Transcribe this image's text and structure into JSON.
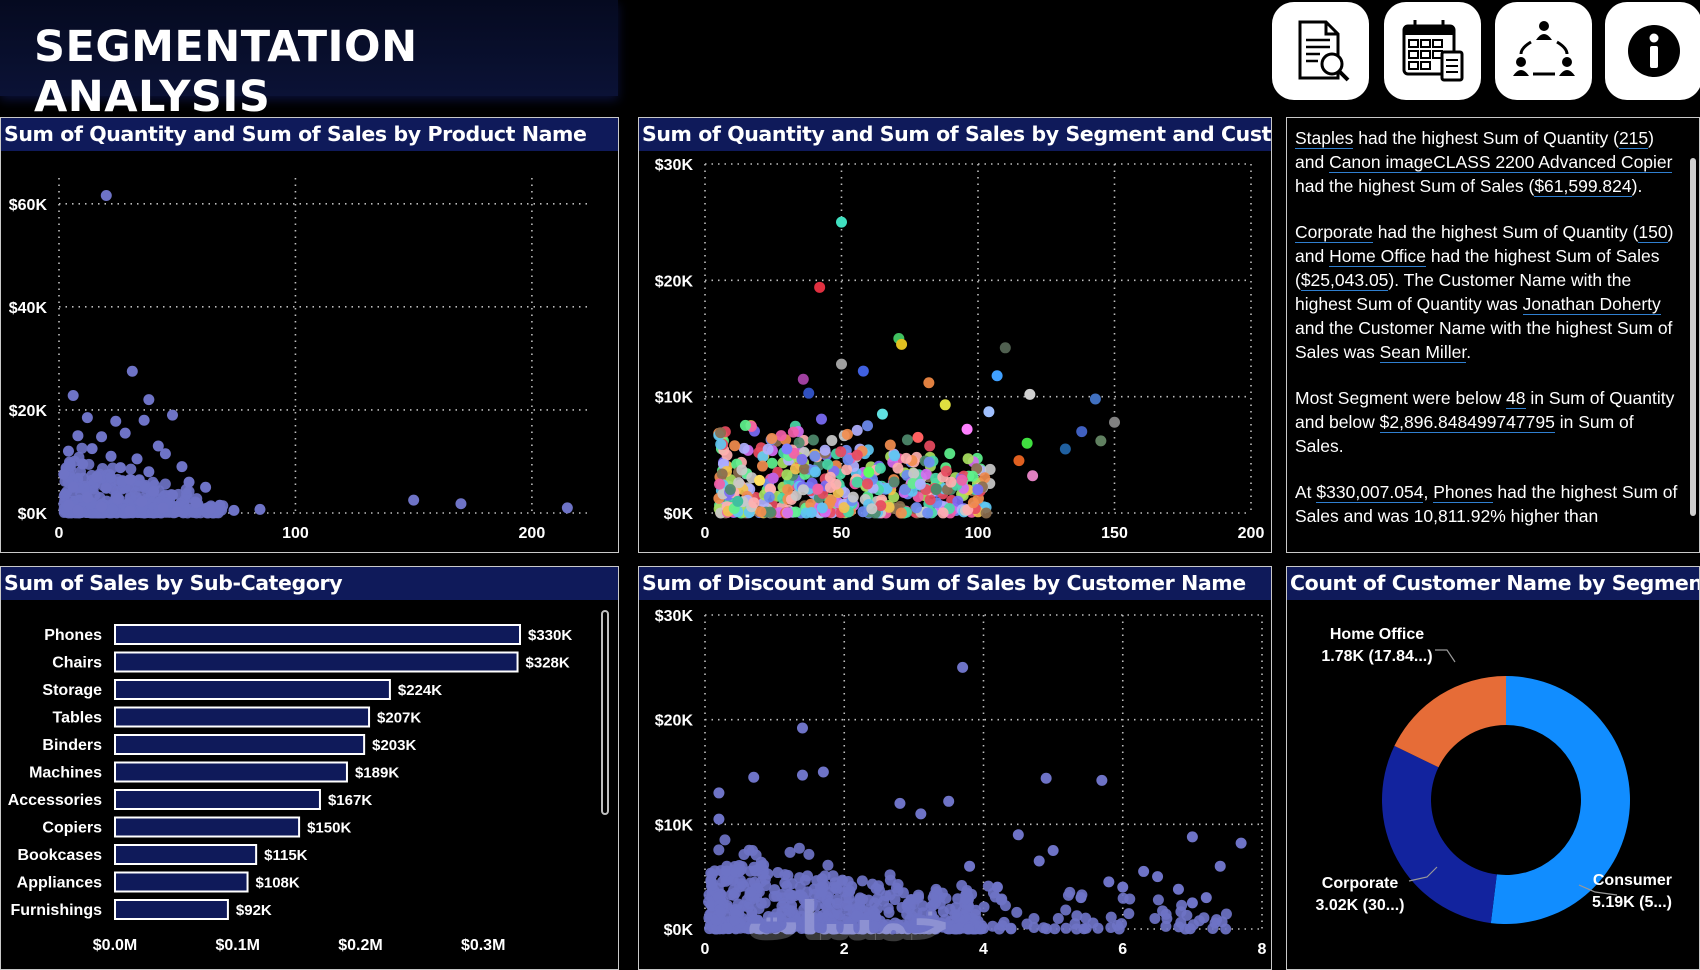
{
  "header": {
    "title": "SEGMENTATION ANALYSIS"
  },
  "nav_buttons": [
    {
      "name": "report-search",
      "icon": "document-search-icon"
    },
    {
      "name": "calendar",
      "icon": "calendar-icon"
    },
    {
      "name": "segments",
      "icon": "people-network-icon"
    },
    {
      "name": "info",
      "icon": "info-icon"
    }
  ],
  "panels": {
    "product_scatter": {
      "title": "Sum of Quantity and Sum of Sales by Product Name"
    },
    "segment_scatter": {
      "title": "Sum of Quantity and Sum of Sales by Segment and Customer"
    },
    "subcategory_bar": {
      "title": "Sum of Sales by Sub-Category"
    },
    "discount_scatter": {
      "title": "Sum of Discount and Sum of Sales by Customer Name"
    },
    "segment_donut": {
      "title": "Count of Customer Name by Segment"
    }
  },
  "narrative": {
    "p1": {
      "staples": "Staples",
      "t1": " had the highest Sum of Quantity (",
      "qty": "215",
      "t2": ") and ",
      "copier": "Canon imageCLASS 2200 Advanced Copier",
      "t3": " had the highest Sum of Sales (",
      "sales": "$61,599.824",
      "t4": ")."
    },
    "p2": {
      "corporate": "Corporate",
      "t1": " had the highest Sum of Quantity (",
      "qty": "150",
      "t2": ") and ",
      "home": "Home Office",
      "t3": " had the highest Sum of Sales (",
      "sales": "$25,043.05",
      "t4": "). The Customer Name with the highest Sum of Quantity was ",
      "jonathan": "Jonathan Doherty",
      "t5": " and the Customer Name with the highest Sum of Sales was ",
      "sean": "Sean Miller",
      "t6": "."
    },
    "p3": {
      "t1": "Most Segment were below ",
      "qty": "48",
      "t2": " in Sum of Quantity and below ",
      "sales": "$2,896.848499747795",
      "t3": " in Sum of Sales."
    },
    "p4": {
      "t1": "At ",
      "sales": "$330,007.054",
      "t2": ", ",
      "phones": "Phones",
      "t3": " had the highest Sum of Sales and was 10,811.92% higher than"
    }
  },
  "watermark": "خمسات",
  "chart_data": [
    {
      "id": "product_scatter",
      "type": "scatter",
      "title": "Sum of Quantity and Sum of Sales by Product Name",
      "xlabel": "Sum of Quantity",
      "ylabel": "Sum of Sales",
      "xlim": [
        0,
        225
      ],
      "ylim": [
        0,
        65000
      ],
      "x_ticks": [
        {
          "v": 0,
          "label": "0"
        },
        {
          "v": 100,
          "label": "100"
        },
        {
          "v": 200,
          "label": "200"
        }
      ],
      "y_ticks": [
        {
          "v": 0,
          "label": "$0K"
        },
        {
          "v": 20000,
          "label": "$20K"
        },
        {
          "v": 40000,
          "label": "$40K"
        },
        {
          "v": 60000,
          "label": "$60K"
        }
      ],
      "color": "#6e73c6",
      "points": [
        {
          "x": 20,
          "y": 61600
        },
        {
          "x": 31,
          "y": 27500
        },
        {
          "x": 6,
          "y": 22800
        },
        {
          "x": 38,
          "y": 22000
        },
        {
          "x": 12,
          "y": 18500
        },
        {
          "x": 24,
          "y": 17800
        },
        {
          "x": 48,
          "y": 19000
        },
        {
          "x": 36,
          "y": 18000
        },
        {
          "x": 8,
          "y": 15000
        },
        {
          "x": 18,
          "y": 14800
        },
        {
          "x": 28,
          "y": 15500
        },
        {
          "x": 42,
          "y": 13000
        },
        {
          "x": 4,
          "y": 12000
        },
        {
          "x": 14,
          "y": 12500
        },
        {
          "x": 22,
          "y": 11000
        },
        {
          "x": 33,
          "y": 10500
        },
        {
          "x": 45,
          "y": 11500
        },
        {
          "x": 52,
          "y": 9000
        },
        {
          "x": 10,
          "y": 9500
        },
        {
          "x": 26,
          "y": 8800
        },
        {
          "x": 38,
          "y": 8000
        },
        {
          "x": 2,
          "y": 7500
        },
        {
          "x": 16,
          "y": 7000
        },
        {
          "x": 30,
          "y": 6500
        },
        {
          "x": 55,
          "y": 6000
        },
        {
          "x": 62,
          "y": 5000
        },
        {
          "x": 6,
          "y": 5000
        },
        {
          "x": 20,
          "y": 4800
        },
        {
          "x": 40,
          "y": 4200
        },
        {
          "x": 48,
          "y": 3500
        },
        {
          "x": 12,
          "y": 3000
        },
        {
          "x": 25,
          "y": 2800
        },
        {
          "x": 35,
          "y": 2200
        },
        {
          "x": 58,
          "y": 2000
        },
        {
          "x": 68,
          "y": 1500
        },
        {
          "x": 4,
          "y": 1500
        },
        {
          "x": 18,
          "y": 1200
        },
        {
          "x": 44,
          "y": 1000
        },
        {
          "x": 74,
          "y": 500
        },
        {
          "x": 85,
          "y": 700
        },
        {
          "x": 150,
          "y": 2500
        },
        {
          "x": 170,
          "y": 1800
        },
        {
          "x": 215,
          "y": 1000
        },
        {
          "x": 8,
          "y": 500
        },
        {
          "x": 30,
          "y": 400
        },
        {
          "x": 50,
          "y": 300
        },
        {
          "x": 64,
          "y": 800
        }
      ],
      "point_scale": "small",
      "clusters": [
        {
          "x0": 2,
          "x1": 60,
          "y0": 0,
          "y1": 9000,
          "n": 220
        },
        {
          "x0": 2,
          "x1": 35,
          "y0": 0,
          "y1": 15000,
          "n": 70
        },
        {
          "x0": 20,
          "x1": 70,
          "y0": 0,
          "y1": 3000,
          "n": 80
        }
      ]
    },
    {
      "id": "segment_scatter",
      "type": "scatter",
      "title": "Sum of Quantity and Sum of Sales by Segment and Customer",
      "xlabel": "Sum of Quantity",
      "ylabel": "Sum of Sales",
      "xlim": [
        0,
        200
      ],
      "ylim": [
        0,
        30000
      ],
      "x_ticks": [
        {
          "v": 0,
          "label": "0"
        },
        {
          "v": 50,
          "label": "50"
        },
        {
          "v": 100,
          "label": "100"
        },
        {
          "v": 150,
          "label": "150"
        },
        {
          "v": 200,
          "label": "200"
        }
      ],
      "y_ticks": [
        {
          "v": 0,
          "label": "$0K"
        },
        {
          "v": 10000,
          "label": "$10K"
        },
        {
          "v": 20000,
          "label": "$20K"
        },
        {
          "v": 30000,
          "label": "$30K"
        }
      ],
      "color": "multi",
      "points": [
        {
          "x": 50,
          "y": 25000,
          "c": "#40e0c0"
        },
        {
          "x": 42,
          "y": 19400,
          "c": "#e03040"
        },
        {
          "x": 71,
          "y": 15000,
          "c": "#40c060"
        },
        {
          "x": 72,
          "y": 14500,
          "c": "#e0c020"
        },
        {
          "x": 50,
          "y": 12800,
          "c": "#a0a0a0"
        },
        {
          "x": 36,
          "y": 11500,
          "c": "#a040a0"
        },
        {
          "x": 38,
          "y": 10300,
          "c": "#3050c0"
        },
        {
          "x": 58,
          "y": 12200,
          "c": "#4060e0"
        },
        {
          "x": 82,
          "y": 11200,
          "c": "#e08040"
        },
        {
          "x": 110,
          "y": 14200,
          "c": "#506050"
        },
        {
          "x": 107,
          "y": 11800,
          "c": "#40a0ff"
        },
        {
          "x": 119,
          "y": 10200,
          "c": "#d0d0d0"
        },
        {
          "x": 143,
          "y": 9800,
          "c": "#4070c0"
        },
        {
          "x": 150,
          "y": 7800,
          "c": "#808080"
        },
        {
          "x": 118,
          "y": 6000,
          "c": "#40e040"
        },
        {
          "x": 115,
          "y": 4500,
          "c": "#e06020"
        },
        {
          "x": 132,
          "y": 5500,
          "c": "#2060a0"
        },
        {
          "x": 138,
          "y": 7000,
          "c": "#4060c0"
        },
        {
          "x": 145,
          "y": 6200,
          "c": "#608060"
        },
        {
          "x": 120,
          "y": 3200,
          "c": "#e080c0"
        },
        {
          "x": 104,
          "y": 8700,
          "c": "#a0c0ff"
        },
        {
          "x": 96,
          "y": 7200,
          "c": "#ff80ff"
        },
        {
          "x": 12,
          "y": 1000,
          "c": "#40c0a0"
        },
        {
          "x": 20,
          "y": 2800,
          "c": "#ffe060"
        },
        {
          "x": 25,
          "y": 3000,
          "c": "#c060e0"
        },
        {
          "x": 30,
          "y": 5500,
          "c": "#8080ff"
        },
        {
          "x": 65,
          "y": 8500,
          "c": "#60e0e0"
        },
        {
          "x": 88,
          "y": 9300,
          "c": "#e0e040"
        },
        {
          "x": 78,
          "y": 6500,
          "c": "#ff6060"
        },
        {
          "x": 60,
          "y": 3500,
          "c": "#60ff60"
        }
      ],
      "clusters": [
        {
          "x0": 5,
          "x1": 105,
          "y0": 0,
          "y1": 8000,
          "n": 380
        },
        {
          "x0": 30,
          "x1": 100,
          "y0": 2000,
          "y1": 9000,
          "n": 120
        }
      ]
    },
    {
      "id": "subcategory_bar",
      "type": "bar",
      "orientation": "horizontal",
      "title": "Sum of Sales by Sub-Category",
      "xlabel": "Sum of Sales",
      "ylabel": "Sub-Category",
      "xlim": [
        0,
        0.35
      ],
      "x_ticks": [
        {
          "v": 0,
          "label": "$0.0M"
        },
        {
          "v": 0.1,
          "label": "$0.1M"
        },
        {
          "v": 0.2,
          "label": "$0.2M"
        },
        {
          "v": 0.3,
          "label": "$0.3M"
        }
      ],
      "categories": [
        "Phones",
        "Chairs",
        "Storage",
        "Tables",
        "Binders",
        "Machines",
        "Accessories",
        "Copiers",
        "Bookcases",
        "Appliances",
        "Furnishings"
      ],
      "values": [
        0.33,
        0.328,
        0.224,
        0.207,
        0.203,
        0.189,
        0.167,
        0.15,
        0.115,
        0.108,
        0.092
      ],
      "value_labels": [
        "$330K",
        "$328K",
        "$224K",
        "$207K",
        "$203K",
        "$189K",
        "$167K",
        "$150K",
        "$115K",
        "$108K",
        "$92K"
      ],
      "color": "#0f1a5a"
    },
    {
      "id": "discount_scatter",
      "type": "scatter",
      "title": "Sum of Discount and Sum of Sales by Customer Name",
      "xlabel": "Sum of Discount",
      "ylabel": "Sum of Sales",
      "xlim": [
        0,
        8
      ],
      "ylim": [
        0,
        30000
      ],
      "x_ticks": [
        {
          "v": 0,
          "label": "0"
        },
        {
          "v": 2,
          "label": "2"
        },
        {
          "v": 4,
          "label": "4"
        },
        {
          "v": 6,
          "label": "6"
        },
        {
          "v": 8,
          "label": "8"
        }
      ],
      "y_ticks": [
        {
          "v": 0,
          "label": "$0K"
        },
        {
          "v": 10000,
          "label": "$10K"
        },
        {
          "v": 20000,
          "label": "$20K"
        },
        {
          "v": 30000,
          "label": "$30K"
        }
      ],
      "color": "#6e73c6",
      "points": [
        {
          "x": 3.7,
          "y": 25000
        },
        {
          "x": 1.4,
          "y": 19200
        },
        {
          "x": 0.7,
          "y": 14500
        },
        {
          "x": 1.4,
          "y": 14700
        },
        {
          "x": 1.7,
          "y": 15000
        },
        {
          "x": 4.9,
          "y": 14400
        },
        {
          "x": 5.7,
          "y": 14200
        },
        {
          "x": 0.2,
          "y": 10500
        },
        {
          "x": 0.2,
          "y": 13000
        },
        {
          "x": 2.8,
          "y": 12000
        },
        {
          "x": 3.1,
          "y": 11000
        },
        {
          "x": 3.5,
          "y": 12200
        },
        {
          "x": 7.0,
          "y": 8800
        },
        {
          "x": 7.7,
          "y": 8200
        },
        {
          "x": 7.4,
          "y": 6000
        },
        {
          "x": 6.3,
          "y": 5500
        },
        {
          "x": 5.0,
          "y": 7500
        },
        {
          "x": 4.5,
          "y": 9000
        },
        {
          "x": 4.8,
          "y": 6500
        },
        {
          "x": 5.8,
          "y": 4500
        },
        {
          "x": 6.8,
          "y": 3800
        },
        {
          "x": 7.2,
          "y": 3000
        },
        {
          "x": 6.5,
          "y": 5000
        },
        {
          "x": 5.4,
          "y": 3000
        },
        {
          "x": 4.2,
          "y": 4000
        },
        {
          "x": 3.8,
          "y": 6000
        },
        {
          "x": 6.0,
          "y": 4000
        },
        {
          "x": 7.0,
          "y": 2500
        }
      ],
      "clusters": [
        {
          "x0": 0.05,
          "x1": 4.0,
          "y0": 0,
          "y1": 6500,
          "n": 500
        },
        {
          "x0": 0.1,
          "x1": 3.0,
          "y0": 0,
          "y1": 10000,
          "n": 80
        },
        {
          "x0": 3.5,
          "x1": 7.5,
          "y0": 0,
          "y1": 4500,
          "n": 80
        }
      ]
    },
    {
      "id": "segment_donut",
      "type": "pie",
      "donut": true,
      "title": "Count of Customer Name by Segment",
      "slices": [
        {
          "label": "Consumer",
          "value": 5.19,
          "value_label": "5.19K (5...)",
          "color": "#118dff"
        },
        {
          "label": "Corporate",
          "value": 3.02,
          "value_label": "3.02K (30...)",
          "color": "#12239e"
        },
        {
          "label": "Home Office",
          "value": 1.78,
          "value_label": "1.78K (17.84...)",
          "color": "#e66c37"
        }
      ]
    }
  ]
}
